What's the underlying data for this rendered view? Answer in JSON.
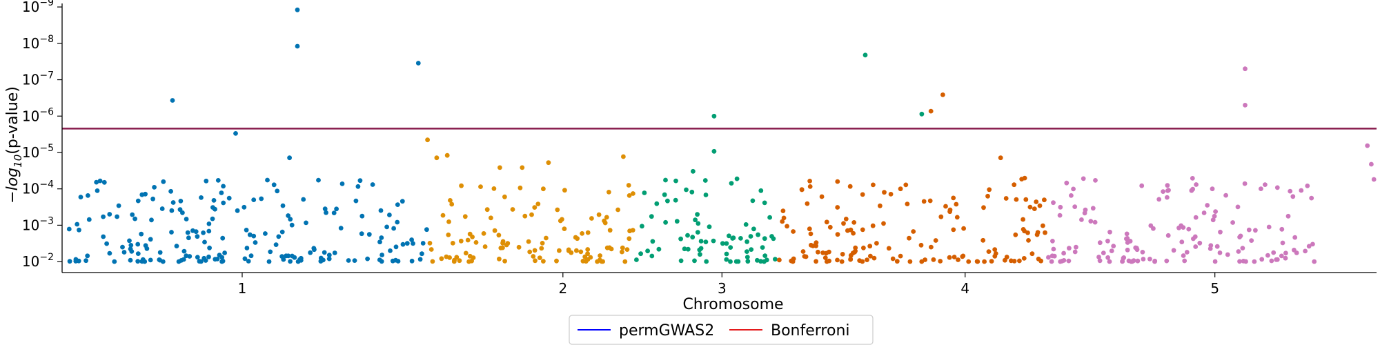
{
  "chart_data": {
    "type": "scatter",
    "title": "",
    "xlabel": "Chromosome",
    "ylabel": "−log10(p-value)",
    "ylabel_parts": {
      "prefix": "−",
      "log": "log",
      "sub": "10",
      "suffix": "(p-value)"
    },
    "yscale": "log-inverted",
    "ylim": [
      0.02,
      8e-10
    ],
    "xlim": [
      0,
      100
    ],
    "y_ticks": [
      {
        "value": 1e-09,
        "base": "10",
        "exp": "−9"
      },
      {
        "value": 1e-08,
        "base": "10",
        "exp": "−8"
      },
      {
        "value": 1e-07,
        "base": "10",
        "exp": "−7"
      },
      {
        "value": 1e-06,
        "base": "10",
        "exp": "−6"
      },
      {
        "value": 1e-05,
        "base": "10",
        "exp": "−5"
      },
      {
        "value": 0.0001,
        "base": "10",
        "exp": "−4"
      },
      {
        "value": 0.001,
        "base": "10",
        "exp": "−3"
      },
      {
        "value": 0.01,
        "base": "10",
        "exp": "−2"
      }
    ],
    "x_ticks": [
      {
        "label": "1",
        "x": 13.7
      },
      {
        "label": "2",
        "x": 38.1
      },
      {
        "label": "3",
        "x": 50.2
      },
      {
        "label": "4",
        "x": 68.7
      },
      {
        "label": "5",
        "x": 87.7
      }
    ],
    "thresholds": [
      {
        "name": "permGWAS2",
        "value": 2.2e-06,
        "color": "#0000ff"
      },
      {
        "name": "Bonferroni",
        "value": 2.2e-06,
        "color": "#e41a1c"
      }
    ],
    "threshold_line_color": "#8b2252",
    "legend": {
      "position": "bottom-center",
      "entries": [
        "permGWAS2",
        "Bonferroni"
      ]
    },
    "chromosomes": [
      {
        "name": "1",
        "x_range": [
          0.5,
          27.8
        ],
        "color": "#0173b2"
      },
      {
        "name": "2",
        "x_range": [
          27.9,
          43.5
        ],
        "color": "#de8f05"
      },
      {
        "name": "3",
        "x_range": [
          43.6,
          54.3
        ],
        "color": "#029e73"
      },
      {
        "name": "4",
        "x_range": [
          54.4,
          74.8
        ],
        "color": "#d55e00"
      },
      {
        "name": "5",
        "x_range": [
          74.9,
          95.3
        ],
        "color": "#cc78bc"
      }
    ],
    "significant_points": [
      {
        "chromosome": "1",
        "x": 8.4,
        "y": 3.7e-07
      },
      {
        "chromosome": "1",
        "x": 13.2,
        "y": 3e-06
      },
      {
        "chromosome": "1",
        "x": 17.9,
        "y": 1.2e-09
      },
      {
        "chromosome": "1",
        "x": 17.9,
        "y": 1.2e-08
      },
      {
        "chromosome": "1",
        "x": 17.3,
        "y": 1.4e-05
      },
      {
        "chromosome": "1",
        "x": 27.1,
        "y": 3.5e-08
      },
      {
        "chromosome": "2",
        "x": 27.8,
        "y": 4.5e-06
      },
      {
        "chromosome": "2",
        "x": 28.5,
        "y": 1.4e-05
      },
      {
        "chromosome": "2",
        "x": 29.3,
        "y": 1.2e-05
      },
      {
        "chromosome": "2",
        "x": 33.3,
        "y": 2.6e-05
      },
      {
        "chromosome": "2",
        "x": 35.0,
        "y": 2.6e-05
      },
      {
        "chromosome": "2",
        "x": 37.0,
        "y": 1.9e-05
      },
      {
        "chromosome": "2",
        "x": 42.7,
        "y": 1.3e-05
      },
      {
        "chromosome": "3",
        "x": 49.6,
        "y": 1e-06
      },
      {
        "chromosome": "3",
        "x": 49.6,
        "y": 9.3e-06
      },
      {
        "chromosome": "3",
        "x": 48.0,
        "y": 3.3e-05
      },
      {
        "chromosome": "3",
        "x": 61.1,
        "y": 2.1e-08
      },
      {
        "chromosome": "3",
        "x": 65.4,
        "y": 8.8e-07
      },
      {
        "chromosome": "4",
        "x": 66.1,
        "y": 7.3e-07
      },
      {
        "chromosome": "4",
        "x": 67.0,
        "y": 2.6e-07
      },
      {
        "chromosome": "4",
        "x": 71.4,
        "y": 1.4e-05
      },
      {
        "chromosome": "5",
        "x": 90.0,
        "y": 5e-08
      },
      {
        "chromosome": "5",
        "x": 90.0,
        "y": 5e-07
      },
      {
        "chromosome": "5",
        "x": 99.3,
        "y": 6.5e-06
      },
      {
        "chromosome": "5",
        "x": 99.6,
        "y": 2.1e-05
      },
      {
        "chromosome": "5",
        "x": 99.8,
        "y": 5.5e-05
      }
    ]
  }
}
